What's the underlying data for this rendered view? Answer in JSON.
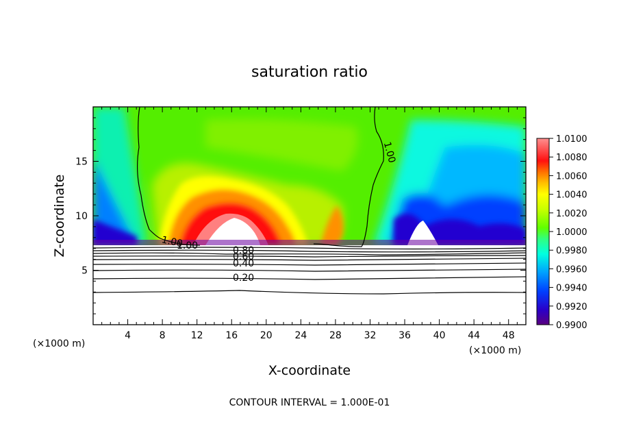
{
  "chart_data": {
    "type": "heatmap",
    "title": "saturation ratio",
    "xlabel": "X-coordinate",
    "ylabel": "Z-coordinate",
    "x_unit": "(×1000 m)",
    "y_unit": "(×1000 m)",
    "xlim": [
      0,
      50
    ],
    "ylim": [
      0,
      20
    ],
    "x_ticks": [
      "4",
      "8",
      "12",
      "16",
      "20",
      "24",
      "28",
      "32",
      "36",
      "40",
      "44",
      "48"
    ],
    "y_ticks": [
      "5",
      "10",
      "15"
    ],
    "colorbar": {
      "min": 0.99,
      "max": 1.01,
      "labels": [
        "1.0100",
        "1.0080",
        "1.0060",
        "1.0040",
        "1.0020",
        "1.0000",
        "0.9980",
        "0.9960",
        "0.9940",
        "0.9920",
        "0.9900"
      ]
    },
    "contour_labels": [
      "1.00",
      "1.00",
      "1.00",
      "0.80",
      "0.60",
      "0.40",
      "0.20"
    ],
    "footer": "CONTOUR INTERVAL = 1.000E-01"
  }
}
